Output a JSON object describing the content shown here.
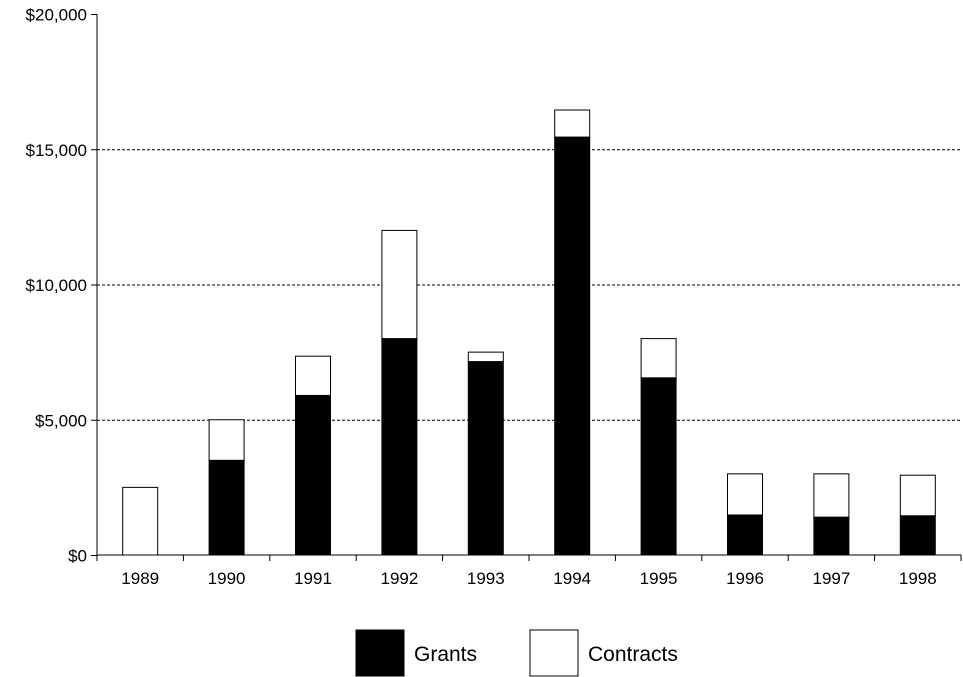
{
  "chart_data": {
    "type": "bar",
    "stacked": true,
    "title": "",
    "xlabel": "",
    "ylabel": "",
    "categories": [
      "1989",
      "1990",
      "1991",
      "1992",
      "1993",
      "1994",
      "1995",
      "1996",
      "1997",
      "1998"
    ],
    "series": [
      {
        "name": "Grants",
        "color": "#000000",
        "values": [
          0,
          3500,
          5900,
          8000,
          7150,
          15450,
          6550,
          1480,
          1400,
          1450
        ]
      },
      {
        "name": "Contracts",
        "color": "#ffffff",
        "values": [
          2500,
          1500,
          1450,
          4000,
          350,
          1000,
          1450,
          1520,
          1600,
          1500
        ]
      }
    ],
    "ylim": [
      0,
      20000
    ],
    "yticks": [
      0,
      5000,
      10000,
      15000,
      20000
    ],
    "ytick_labels": [
      "$0",
      "$5,000",
      "$10,000",
      "$15,000",
      "$20,000"
    ],
    "grid": "horizontal-dashed",
    "legend_position": "bottom-center"
  }
}
